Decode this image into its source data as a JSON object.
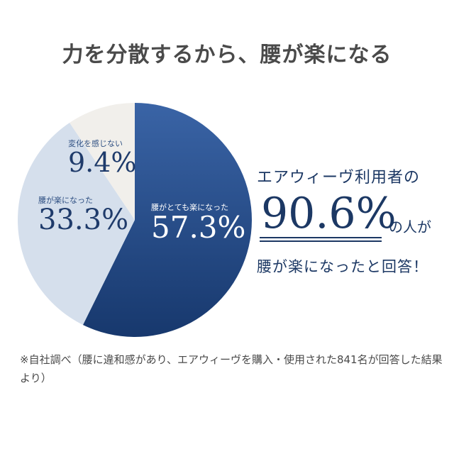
{
  "headline": "力を分散するから、腰が楽になる",
  "chart_data": {
    "type": "pie",
    "title": "",
    "slices": [
      {
        "label": "腰がとても楽になった",
        "value": 57.3,
        "display": "57.3%",
        "color": "#1f4684"
      },
      {
        "label": "腰が楽になった",
        "value": 33.3,
        "display": "33.3%",
        "color": "#d5dfec"
      },
      {
        "label": "変化を感じない",
        "value": 9.4,
        "display": "9.4%",
        "color": "#f1efeb"
      }
    ]
  },
  "callout": {
    "line1": "エアウィーヴ利用者の",
    "big_value": "90.6%",
    "suffix": "の人が",
    "line3": "腰が楽になったと回答！"
  },
  "footnote": "※自社調べ（腰に違和感があり、エアウィーヴを購入・使用された841名が回答した結果より）"
}
